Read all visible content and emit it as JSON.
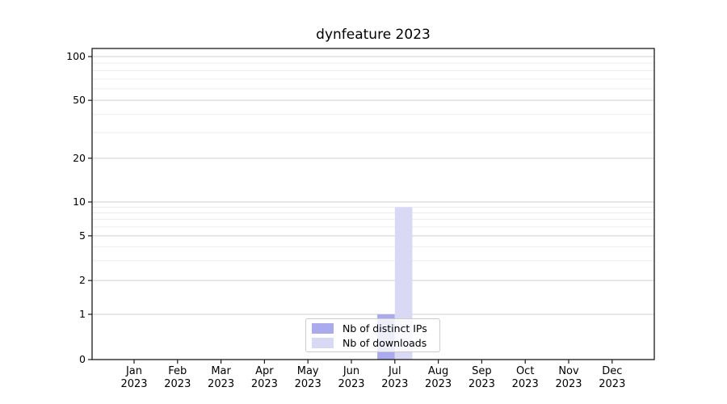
{
  "chart_data": {
    "type": "bar",
    "title": "dynfeature 2023",
    "categories": [
      "Jan 2023",
      "Feb 2023",
      "Mar 2023",
      "Apr 2023",
      "May 2023",
      "Jun 2023",
      "Jul 2023",
      "Aug 2023",
      "Sep 2023",
      "Oct 2023",
      "Nov 2023",
      "Dec 2023"
    ],
    "month_labels": [
      "Jan",
      "Feb",
      "Mar",
      "Apr",
      "May",
      "Jun",
      "Jul",
      "Aug",
      "Sep",
      "Oct",
      "Nov",
      "Dec"
    ],
    "year_label": "2023",
    "series": [
      {
        "name": "Nb of distinct IPs",
        "color": "#aaaaec",
        "values": [
          0,
          0,
          0,
          0,
          0,
          0,
          1,
          0,
          0,
          0,
          0,
          0
        ]
      },
      {
        "name": "Nb of downloads",
        "color": "#d9d9f6",
        "values": [
          0,
          0,
          0,
          0,
          0,
          0,
          9,
          0,
          0,
          0,
          0,
          0
        ]
      }
    ],
    "yscale": "symlog",
    "yticks": [
      0,
      1,
      2,
      5,
      10,
      20,
      50,
      100
    ],
    "minor_yticks": [
      3,
      4,
      6,
      7,
      8,
      9,
      30,
      40,
      60,
      70,
      80,
      90
    ],
    "ylim": [
      0,
      113
    ],
    "grid": true,
    "legend_position": "lower center",
    "xlabel": "",
    "ylabel": ""
  },
  "style": {
    "background": "#ffffff",
    "axis_color": "#1a1a1a",
    "grid_major_color": "#d0d0d0",
    "grid_minor_color": "#ededed",
    "text_color": "#000000"
  }
}
